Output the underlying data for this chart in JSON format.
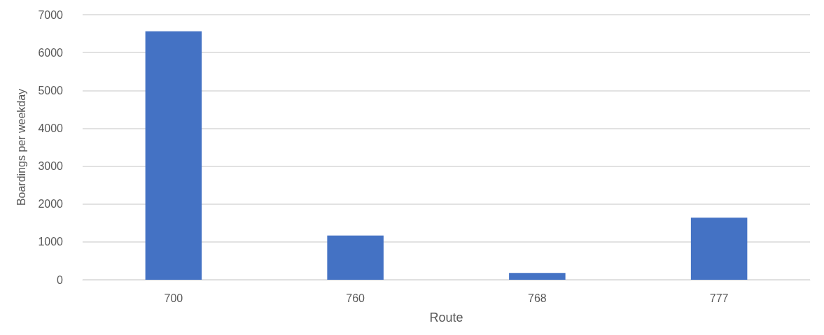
{
  "chart_data": {
    "type": "bar",
    "xlabel": "Route",
    "ylabel": "Boardings per weekday",
    "categories": [
      "700",
      "760",
      "768",
      "777"
    ],
    "values": [
      6560,
      1170,
      180,
      1640
    ],
    "color": "#4472c4",
    "ylim": [
      0,
      7000
    ],
    "yticks": [
      0,
      1000,
      2000,
      3000,
      4000,
      5000,
      6000,
      7000
    ],
    "grid": "y"
  }
}
